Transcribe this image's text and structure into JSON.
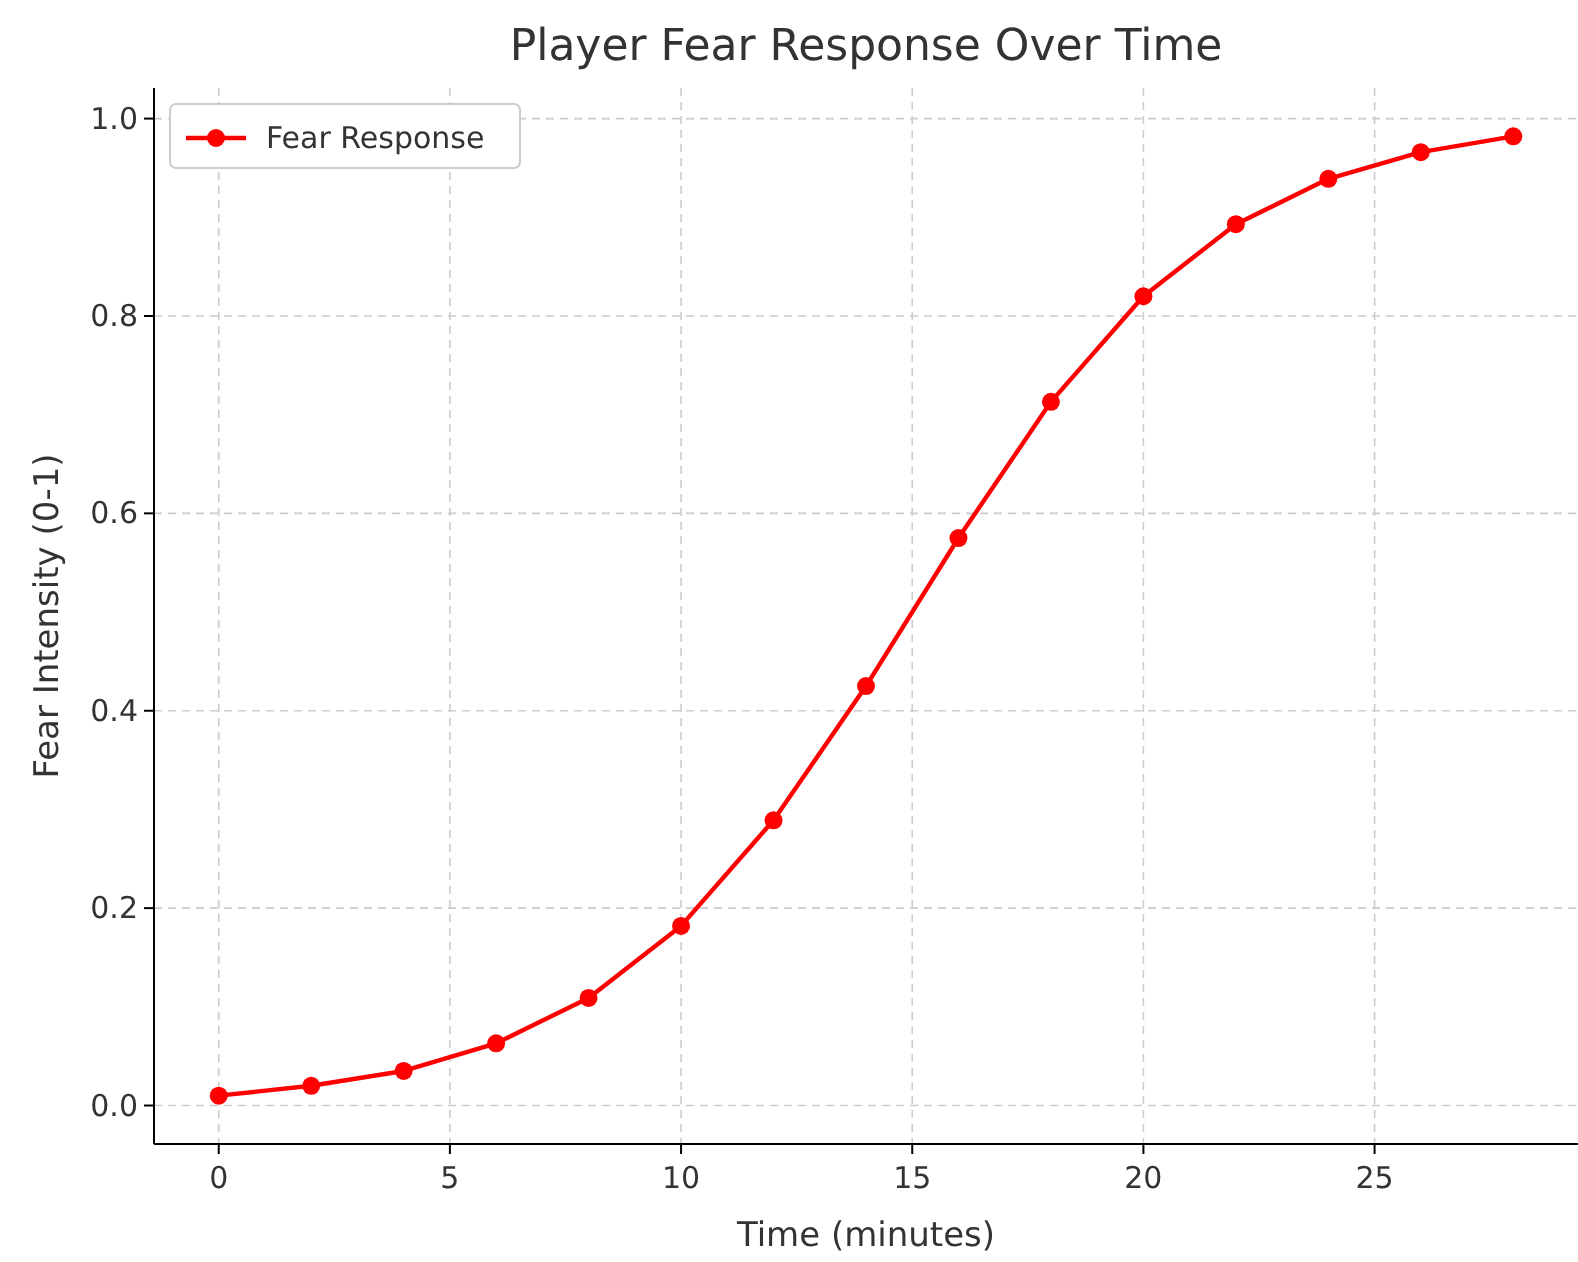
{
  "chart_data": {
    "type": "line",
    "title": "Player Fear Response Over Time",
    "xlabel": "Time (minutes)",
    "ylabel": "Fear Intensity (0-1)",
    "x": [
      0,
      2,
      4,
      6,
      8,
      10,
      12,
      14,
      16,
      18,
      20,
      22,
      24,
      26,
      28
    ],
    "series": [
      {
        "name": "Fear Response",
        "color": "#ff0000",
        "values": [
          0.01,
          0.02,
          0.035,
          0.063,
          0.109,
          0.182,
          0.289,
          0.425,
          0.575,
          0.713,
          0.82,
          0.893,
          0.939,
          0.966,
          0.982
        ]
      }
    ],
    "xlim": [
      -1.4,
      29.4
    ],
    "ylim": [
      -0.039,
      1.031
    ],
    "xticks": [
      0,
      5,
      10,
      15,
      20,
      25
    ],
    "yticks": [
      {
        "value": 0,
        "label": "0.0"
      },
      {
        "value": 0.2,
        "label": "0.2"
      },
      {
        "value": 0.4,
        "label": "0.4"
      },
      {
        "value": 0.6,
        "label": "0.6"
      },
      {
        "value": 0.8,
        "label": "0.8"
      },
      {
        "value": 1,
        "label": "1.0"
      }
    ],
    "grid": true,
    "legend": "top left",
    "marker": "circle",
    "line_style": "solid"
  }
}
